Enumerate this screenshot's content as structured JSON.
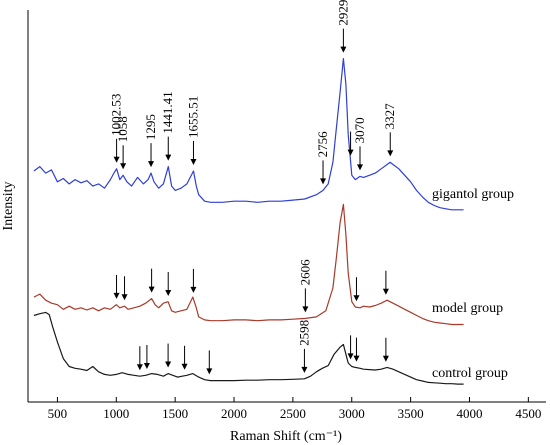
{
  "chart_data": {
    "type": "line",
    "title": "",
    "xlabel": "Raman Shift (cm⁻¹)",
    "ylabel": "Intensity",
    "xlim": [
      250,
      4650
    ],
    "xticks": [
      "500",
      "1000",
      "1500",
      "2000",
      "2500",
      "3000",
      "3500",
      "4000",
      "4500"
    ],
    "yticks_shown": false,
    "grid": false,
    "legend": "labels placed at right end of each trace",
    "series": [
      {
        "name": "gigantol group",
        "color": "#2f3fd6",
        "x": [
          300,
          350,
          400,
          450,
          500,
          550,
          600,
          650,
          700,
          750,
          800,
          850,
          900,
          950,
          980,
          1002.53,
          1030,
          1058,
          1090,
          1130,
          1180,
          1230,
          1270,
          1295,
          1320,
          1360,
          1400,
          1441.41,
          1470,
          1500,
          1550,
          1600,
          1655.51,
          1680,
          1700,
          1750,
          1800,
          1900,
          2000,
          2100,
          2200,
          2300,
          2400,
          2500,
          2600,
          2700,
          2756,
          2800,
          2840,
          2870,
          2900,
          2929,
          2950,
          2970,
          3000,
          3030,
          3070,
          3100,
          3150,
          3200,
          3250,
          3300,
          3327,
          3350,
          3400,
          3450,
          3500,
          3550,
          3600,
          3650,
          3700,
          3750,
          3800,
          3850,
          3900,
          3950
        ],
        "y": [
          0.38,
          0.42,
          0.36,
          0.39,
          0.28,
          0.31,
          0.26,
          0.3,
          0.27,
          0.29,
          0.24,
          0.26,
          0.22,
          0.3,
          0.36,
          0.4,
          0.3,
          0.34,
          0.28,
          0.24,
          0.32,
          0.26,
          0.3,
          0.36,
          0.28,
          0.22,
          0.26,
          0.42,
          0.24,
          0.2,
          0.22,
          0.26,
          0.38,
          0.24,
          0.16,
          0.1,
          0.09,
          0.09,
          0.1,
          0.1,
          0.09,
          0.1,
          0.1,
          0.11,
          0.12,
          0.16,
          0.2,
          0.26,
          0.46,
          0.78,
          1.1,
          1.42,
          1.18,
          0.72,
          0.34,
          0.3,
          0.33,
          0.32,
          0.34,
          0.36,
          0.4,
          0.44,
          0.46,
          0.44,
          0.4,
          0.34,
          0.28,
          0.2,
          0.14,
          0.09,
          0.06,
          0.04,
          0.03,
          0.02,
          0.02,
          0.02
        ]
      },
      {
        "name": "model group",
        "color": "#a83a2a",
        "x": [
          300,
          350,
          400,
          450,
          500,
          550,
          600,
          650,
          700,
          750,
          800,
          850,
          900,
          950,
          1000,
          1030,
          1070,
          1100,
          1150,
          1200,
          1250,
          1300,
          1330,
          1360,
          1400,
          1440,
          1470,
          1500,
          1550,
          1600,
          1650,
          1680,
          1700,
          1750,
          1800,
          1900,
          2000,
          2100,
          2200,
          2300,
          2400,
          2500,
          2606,
          2700,
          2780,
          2840,
          2870,
          2900,
          2929,
          2950,
          2970,
          3000,
          3030,
          3070,
          3100,
          3150,
          3200,
          3250,
          3300,
          3350,
          3400,
          3450,
          3500,
          3550,
          3600,
          3650,
          3700,
          3750,
          3800,
          3850,
          3900,
          3950
        ],
        "y": [
          0.38,
          0.42,
          0.34,
          0.3,
          0.28,
          0.22,
          0.26,
          0.22,
          0.24,
          0.21,
          0.24,
          0.2,
          0.24,
          0.22,
          0.28,
          0.24,
          0.26,
          0.22,
          0.24,
          0.26,
          0.3,
          0.36,
          0.28,
          0.24,
          0.3,
          0.32,
          0.2,
          0.18,
          0.2,
          0.22,
          0.38,
          0.24,
          0.12,
          0.08,
          0.07,
          0.07,
          0.08,
          0.08,
          0.07,
          0.08,
          0.08,
          0.09,
          0.1,
          0.12,
          0.2,
          0.5,
          0.9,
          1.35,
          1.6,
          1.2,
          0.7,
          0.32,
          0.25,
          0.24,
          0.26,
          0.25,
          0.27,
          0.3,
          0.34,
          0.3,
          0.26,
          0.22,
          0.18,
          0.14,
          0.1,
          0.07,
          0.05,
          0.04,
          0.03,
          0.02,
          0.02,
          0.02
        ]
      },
      {
        "name": "control group",
        "color": "#1a1a1a",
        "x": [
          300,
          350,
          400,
          430,
          460,
          500,
          550,
          600,
          650,
          700,
          750,
          800,
          850,
          900,
          950,
          1000,
          1050,
          1100,
          1150,
          1200,
          1250,
          1300,
          1350,
          1400,
          1440,
          1480,
          1520,
          1560,
          1600,
          1650,
          1700,
          1750,
          1800,
          1900,
          2000,
          2100,
          2200,
          2300,
          2400,
          2500,
          2598,
          2650,
          2700,
          2750,
          2800,
          2850,
          2900,
          2929,
          2950,
          2970,
          3000,
          3030,
          3070,
          3100,
          3150,
          3200,
          3250,
          3300,
          3350,
          3400,
          3450,
          3500,
          3550,
          3600,
          3650,
          3700,
          3750,
          3800,
          3850,
          3900,
          3950
        ],
        "y": [
          1.58,
          1.62,
          1.65,
          1.6,
          1.32,
          0.98,
          0.6,
          0.42,
          0.38,
          0.36,
          0.33,
          0.42,
          0.3,
          0.24,
          0.22,
          0.24,
          0.28,
          0.24,
          0.22,
          0.2,
          0.22,
          0.26,
          0.24,
          0.2,
          0.26,
          0.22,
          0.18,
          0.2,
          0.22,
          0.26,
          0.18,
          0.12,
          0.1,
          0.1,
          0.1,
          0.11,
          0.11,
          0.12,
          0.12,
          0.13,
          0.14,
          0.2,
          0.3,
          0.38,
          0.44,
          0.7,
          0.86,
          0.92,
          0.7,
          0.5,
          0.42,
          0.4,
          0.38,
          0.36,
          0.35,
          0.34,
          0.36,
          0.4,
          0.36,
          0.3,
          0.24,
          0.18,
          0.12,
          0.09,
          0.06,
          0.05,
          0.04,
          0.03,
          0.03,
          0.02,
          0.02
        ]
      }
    ],
    "annotations": [
      {
        "series": "gigantol group",
        "x": 1002.53,
        "label": "1002.53"
      },
      {
        "series": "gigantol group",
        "x": 1058,
        "label": "1058"
      },
      {
        "series": "gigantol group",
        "x": 1295,
        "label": "1295"
      },
      {
        "series": "gigantol group",
        "x": 1441.41,
        "label": "1441.41"
      },
      {
        "series": "gigantol group",
        "x": 1655.51,
        "label": "1655.51"
      },
      {
        "series": "gigantol group",
        "x": 2756,
        "label": "2756"
      },
      {
        "series": "gigantol group",
        "x": 2929,
        "label": "2929"
      },
      {
        "series": "gigantol group",
        "x": 3070,
        "label": "3070"
      },
      {
        "series": "gigantol group",
        "x": 3327,
        "label": "3327"
      },
      {
        "series": "gigantol group",
        "x": 2990,
        "label": ""
      },
      {
        "series": "model group",
        "x": 1002,
        "label": ""
      },
      {
        "series": "model group",
        "x": 1070,
        "label": ""
      },
      {
        "series": "model group",
        "x": 1300,
        "label": ""
      },
      {
        "series": "model group",
        "x": 1441,
        "label": ""
      },
      {
        "series": "model group",
        "x": 1655,
        "label": ""
      },
      {
        "series": "model group",
        "x": 2606,
        "label": "2606"
      },
      {
        "series": "model group",
        "x": 3040,
        "label": ""
      },
      {
        "series": "model group",
        "x": 3290,
        "label": ""
      },
      {
        "series": "control group",
        "x": 1200,
        "label": ""
      },
      {
        "series": "control group",
        "x": 1260,
        "label": ""
      },
      {
        "series": "control group",
        "x": 1440,
        "label": ""
      },
      {
        "series": "control group",
        "x": 1580,
        "label": ""
      },
      {
        "series": "control group",
        "x": 1790,
        "label": ""
      },
      {
        "series": "control group",
        "x": 2598,
        "label": "2598"
      },
      {
        "series": "control group",
        "x": 2990,
        "label": ""
      },
      {
        "series": "control group",
        "x": 3040,
        "label": ""
      },
      {
        "series": "control group",
        "x": 3290,
        "label": ""
      }
    ]
  }
}
